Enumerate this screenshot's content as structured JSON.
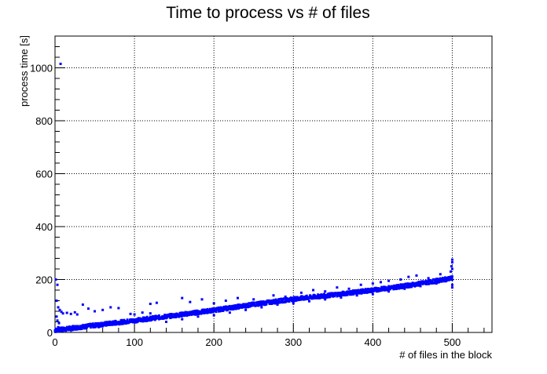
{
  "chart_data": {
    "type": "scatter",
    "title": "Time to process vs # of files",
    "xlabel": "# of files in the block",
    "ylabel": "process time [s]",
    "xlim": [
      0,
      550
    ],
    "ylim": [
      0,
      1120
    ],
    "x_ticks": [
      0,
      100,
      200,
      300,
      400,
      500
    ],
    "y_ticks": [
      0,
      200,
      400,
      600,
      800,
      1000
    ],
    "grid": true,
    "marker_color": "#0000ff",
    "series": [
      {
        "trend": [
          [
            0,
            8
          ],
          [
            50,
            27
          ],
          [
            100,
            45
          ],
          [
            150,
            64
          ],
          [
            200,
            84
          ],
          [
            250,
            106
          ],
          [
            300,
            126
          ],
          [
            350,
            142
          ],
          [
            400,
            160
          ],
          [
            450,
            180
          ],
          [
            500,
            205
          ]
        ],
        "points": [
          [
            7,
            1015
          ],
          [
            1,
            200
          ],
          [
            3,
            180
          ],
          [
            2,
            120
          ],
          [
            4,
            95
          ],
          [
            6,
            85
          ],
          [
            8,
            78
          ],
          [
            10,
            72
          ],
          [
            15,
            74
          ],
          [
            20,
            70
          ],
          [
            25,
            76
          ],
          [
            28,
            68
          ],
          [
            2,
            60
          ],
          [
            3,
            45
          ],
          [
            5,
            35
          ],
          [
            4,
            20
          ],
          [
            6,
            15
          ],
          [
            12,
            12
          ],
          [
            18,
            10
          ],
          [
            25,
            14
          ],
          [
            35,
            105
          ],
          [
            42,
            90
          ],
          [
            50,
            80
          ],
          [
            60,
            85
          ],
          [
            70,
            95
          ],
          [
            80,
            92
          ],
          [
            95,
            70
          ],
          [
            100,
            68
          ],
          [
            110,
            75
          ],
          [
            120,
            72
          ],
          [
            120,
            108
          ],
          [
            128,
            112
          ],
          [
            160,
            130
          ],
          [
            170,
            115
          ],
          [
            185,
            125
          ],
          [
            200,
            110
          ],
          [
            215,
            120
          ],
          [
            230,
            130
          ],
          [
            250,
            125
          ],
          [
            275,
            140
          ],
          [
            290,
            135
          ],
          [
            310,
            150
          ],
          [
            325,
            160
          ],
          [
            340,
            155
          ],
          [
            355,
            170
          ],
          [
            370,
            165
          ],
          [
            385,
            180
          ],
          [
            400,
            185
          ],
          [
            410,
            190
          ],
          [
            420,
            195
          ],
          [
            435,
            200
          ],
          [
            445,
            210
          ],
          [
            455,
            215
          ],
          [
            470,
            205
          ],
          [
            485,
            220
          ],
          [
            490,
            195
          ],
          [
            498,
            230
          ],
          [
            499,
            250
          ],
          [
            500,
            265
          ],
          [
            500,
            275
          ],
          [
            500,
            180
          ],
          [
            500,
            170
          ],
          [
            499,
            200
          ],
          [
            500,
            240
          ],
          [
            30,
            18
          ],
          [
            40,
            22
          ],
          [
            45,
            30
          ],
          [
            55,
            20
          ],
          [
            60,
            25
          ],
          [
            65,
            30
          ],
          [
            70,
            32
          ],
          [
            80,
            35
          ],
          [
            90,
            40
          ],
          [
            140,
            40
          ],
          [
            160,
            50
          ],
          [
            180,
            60
          ],
          [
            200,
            65
          ],
          [
            220,
            75
          ],
          [
            240,
            85
          ],
          [
            260,
            95
          ],
          [
            280,
            105
          ],
          [
            300,
            110
          ],
          [
            320,
            118
          ],
          [
            340,
            125
          ],
          [
            360,
            132
          ],
          [
            380,
            140
          ],
          [
            400,
            145
          ],
          [
            420,
            155
          ],
          [
            440,
            165
          ],
          [
            460,
            175
          ],
          [
            480,
            185
          ]
        ]
      }
    ]
  }
}
